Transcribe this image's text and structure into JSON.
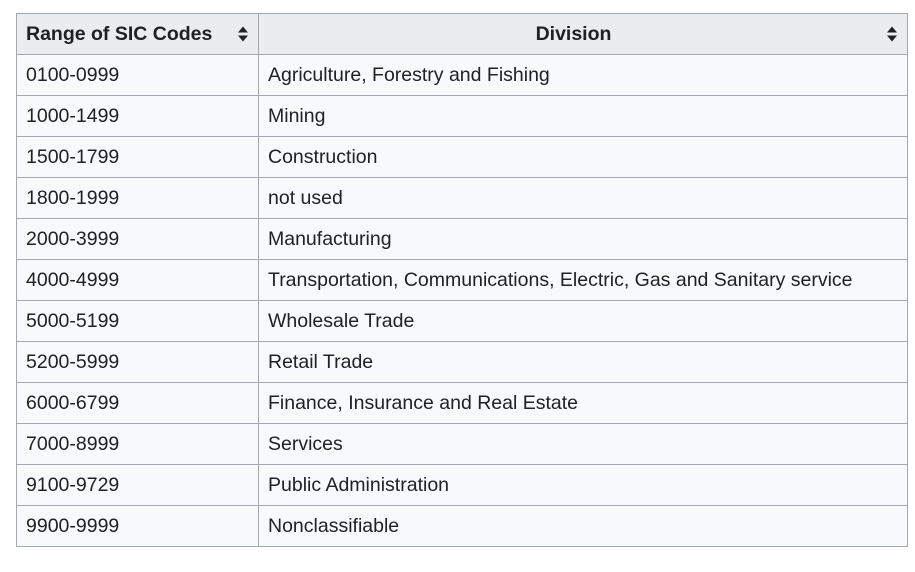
{
  "table": {
    "headers": {
      "range": "Range of SIC Codes",
      "division": "Division"
    },
    "rows": [
      {
        "range": "0100-0999",
        "division": "Agriculture, Forestry and Fishing"
      },
      {
        "range": "1000-1499",
        "division": "Mining"
      },
      {
        "range": "1500-1799",
        "division": "Construction"
      },
      {
        "range": "1800-1999",
        "division": "not used"
      },
      {
        "range": "2000-3999",
        "division": "Manufacturing"
      },
      {
        "range": "4000-4999",
        "division": "Transportation, Communications, Electric, Gas and Sanitary service"
      },
      {
        "range": "5000-5199",
        "division": "Wholesale Trade"
      },
      {
        "range": "5200-5999",
        "division": "Retail Trade"
      },
      {
        "range": "6000-6799",
        "division": "Finance, Insurance and Real Estate"
      },
      {
        "range": "7000-8999",
        "division": "Services"
      },
      {
        "range": "9100-9729",
        "division": "Public Administration"
      },
      {
        "range": "9900-9999",
        "division": "Nonclassifiable"
      }
    ],
    "sort_icon": "sort-up-down-icon"
  }
}
